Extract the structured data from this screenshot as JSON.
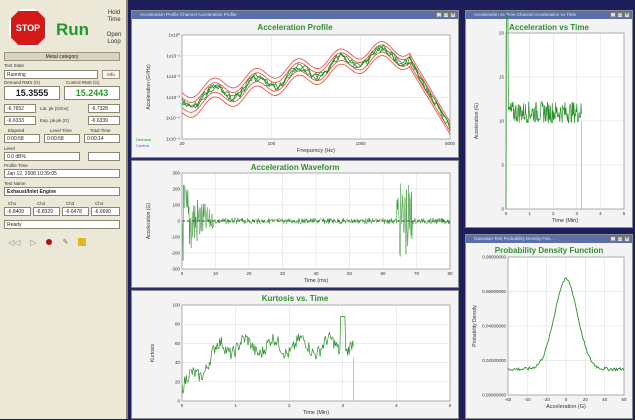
{
  "left": {
    "stop_label": "STOP",
    "run_label": "Run",
    "hold_time_label": "Hold Time",
    "open_loop_label": "Open Loop",
    "mode_bar": "Metal category",
    "test_state_label": "Test State",
    "test_state_value": "Running",
    "info_label": "Info",
    "demand_label": "Demand RMS (G)",
    "demand_value": "15.3555",
    "control_label": "Control RMS (G)",
    "control_value": "15.2443",
    "row1": [
      "-6.7652",
      "Lat. pk (G/ms)",
      "-6.7328"
    ],
    "row2": [
      "-6.6333",
      "Exp. pk-pk (G)",
      "-6.6339"
    ],
    "time_headers": [
      "Elapsed",
      "Level Time",
      "Total Time"
    ],
    "time_values": [
      "0:00:58",
      "0:00:58",
      "0:00:14"
    ],
    "level_label": "Level",
    "level_value": "0.0 dB%",
    "profile_label": "Profile Time",
    "profile_value": "Jan 12, 2008 10:39:05",
    "test_name_label": "Test Name",
    "test_name_value": "Exhaust/Inlet Engine",
    "ch_headers": [
      "Ch1",
      "Ch2",
      "Ch3",
      "Ch4"
    ],
    "ch_values": [
      "-6.8409",
      "-6.8329",
      "-6.6478",
      "-6.6690"
    ],
    "status_value": "Ready"
  },
  "windows": {
    "accel_profile": {
      "title_bar": "Acceleration Profile Channel Acceleration Profile",
      "chart_title": "Acceleration Profile",
      "ylabel": "Acceleration (G²/Hz)",
      "xlabel": "Frequency (Hz)",
      "yticks": [
        "1x10⁰",
        "1x10⁻¹",
        "1x10⁻²",
        "1x10⁻³",
        "1x10⁻⁴",
        "1x10⁻⁵"
      ],
      "xticks": [
        "20",
        "100",
        "1000",
        "5000"
      ],
      "legend": [
        "Demand",
        "Control"
      ]
    },
    "accel_waveform": {
      "chart_title": "Acceleration Waveform",
      "ylabel": "Acceleration (G)",
      "xlabel": "Time (ms)",
      "yticks": [
        "300",
        "200",
        "100",
        "0",
        "-100",
        "-200",
        "-300"
      ],
      "xticks": [
        "0",
        "10",
        "20",
        "30",
        "40",
        "50",
        "60",
        "70",
        "80"
      ]
    },
    "kurtosis": {
      "chart_title": "Kurtosis vs. Time",
      "ylabel": "Kurtosis",
      "xlabel": "Time (Min)",
      "yticks": [
        "100",
        "80",
        "60",
        "40",
        "20",
        "0"
      ],
      "xticks": [
        "0",
        "1",
        "2",
        "3",
        "4",
        "5"
      ]
    },
    "accel_time": {
      "title_bar": "Acceleration vs Time Channel Acceleration vs Time",
      "chart_title": "Acceleration vs Time",
      "ylabel": "Acceleration (G)",
      "xlabel": "Time (Min)",
      "yticks": [
        "20",
        "15",
        "10",
        "5",
        "0"
      ],
      "xticks": [
        "0",
        "1",
        "2",
        "3",
        "4",
        "5"
      ]
    },
    "pdf": {
      "title_bar": "Gaussian Test Probability Density Fun...",
      "chart_title": "Probability Density Function",
      "ylabel": "Probability Density",
      "xlabel": "Acceleration (G)",
      "yticks": [
        "0.08000000",
        "0.06000000",
        "0.04000000",
        "0.02000000",
        "0.00000000"
      ],
      "xticks": [
        "-60",
        "-40",
        "-20",
        "0",
        "20",
        "40",
        "60"
      ]
    }
  },
  "colors": {
    "green": "#2a8f2a",
    "red": "#e03b2a",
    "title": "#2f8f2f",
    "yellow": "#d7c21c"
  }
}
